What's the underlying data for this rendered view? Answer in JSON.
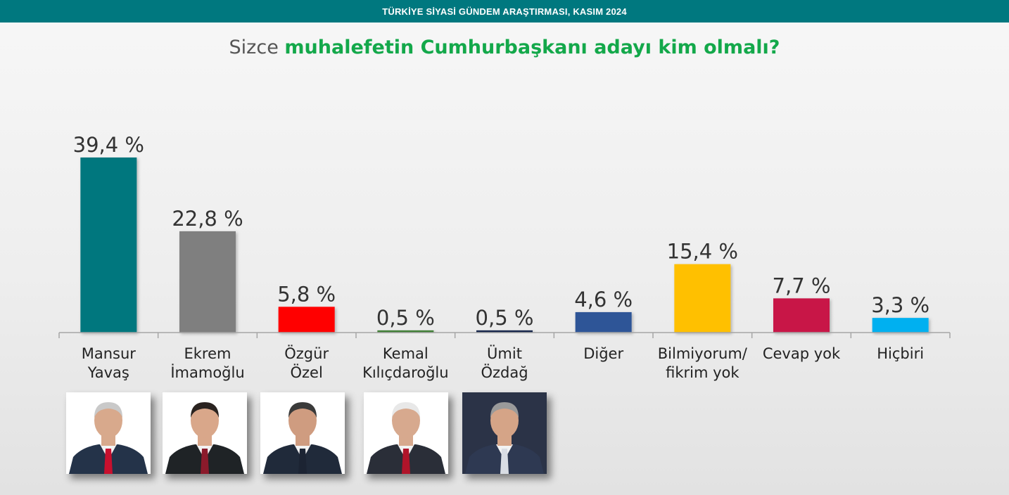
{
  "header": {
    "banner": "TÜRKİYE SİYASİ GÜNDEM ARAŞTIRMASI, KASIM 2024",
    "title_prefix": "Sizce ",
    "title_highlight": "muhalefetin Cumhurbaşkanı adayı kim olmalı?"
  },
  "colors": {
    "banner": "#00787f",
    "highlight": "#13a84a"
  },
  "chart_data": {
    "type": "bar",
    "categories": [
      [
        "Mansur",
        "Yavaş"
      ],
      [
        "Ekrem",
        "İmamoğlu"
      ],
      [
        "Özgür",
        "Özel"
      ],
      [
        "Kemal",
        "Kılıçdaroğlu"
      ],
      [
        "Ümit",
        "Özdağ"
      ],
      [
        "Diğer"
      ],
      [
        "Bilmiyorum/",
        "fikrim yok"
      ],
      [
        "Cevap yok"
      ],
      [
        "Hiçbiri"
      ]
    ],
    "values": [
      39.4,
      22.8,
      5.8,
      0.5,
      0.5,
      4.6,
      15.4,
      7.7,
      3.3
    ],
    "value_labels": [
      "39,4 %",
      "22,8 %",
      "5,8 %",
      "0,5 %",
      "0,5 %",
      "4,6 %",
      "15,4 %",
      "7,7 %",
      "3,3 %"
    ],
    "bar_colors": [
      "#00777e",
      "#7f7f7f",
      "#ff0000",
      "#3f7f35",
      "#14284b",
      "#2f5597",
      "#ffc000",
      "#c81646",
      "#00b0f0"
    ],
    "ylim": [
      0,
      40
    ],
    "grid": false,
    "legend": "none"
  },
  "photos": [
    {
      "name": "Mansur Yavaş",
      "background": "#ffffff",
      "suit": "#243349",
      "tie": "#c8102e",
      "hair": "#c9c9c9",
      "skin": "#d8a98c"
    },
    {
      "name": "Ekrem İmamoğlu",
      "background": "#ffffff",
      "suit": "#1f2326",
      "tie": "#8b1a2b",
      "hair": "#2a2320",
      "skin": "#d9a78a"
    },
    {
      "name": "Özgür Özel",
      "background": "#ffffff",
      "suit": "#202a3a",
      "tie": "#1c2433",
      "hair": "#3a3a3a",
      "skin": "#cf9c80"
    },
    {
      "name": "Kemal Kılıçdaroğlu",
      "background": "#ffffff",
      "suit": "#2a2e38",
      "tie": "#b0142a",
      "hair": "#e8e8e8",
      "skin": "#d7a98e"
    },
    {
      "name": "Ümit Özdağ",
      "background": "#2b3347",
      "suit": "#2e3952",
      "tie": "#d9dde4",
      "hair": "#9a9a9a",
      "skin": "#d5a487"
    }
  ]
}
